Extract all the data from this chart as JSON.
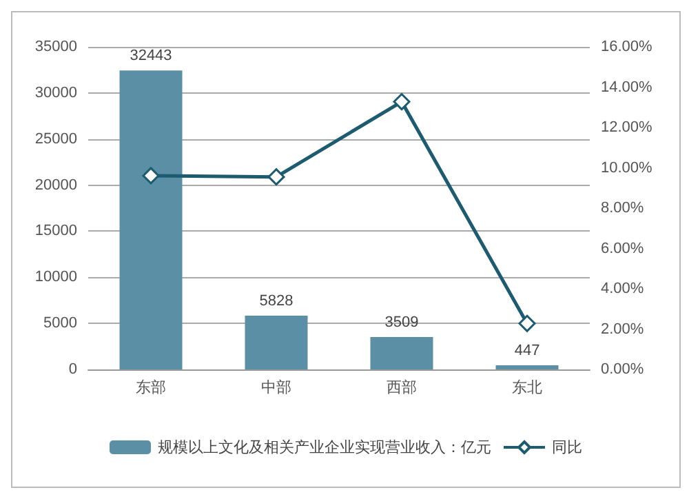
{
  "chart_data": {
    "type": "bar",
    "categories": [
      "东部",
      "中部",
      "西部",
      "东北"
    ],
    "series": [
      {
        "name": "规模以上文化及相关产业企业实现营业收入：亿元",
        "color": "#5b8fa6",
        "values": [
          32443,
          5828,
          3509,
          447
        ],
        "value_labels": [
          "32443",
          "5828",
          "3509",
          "447"
        ]
      },
      {
        "name": "同比",
        "type": "line",
        "axis": "y2",
        "color": "#1d5b70",
        "values": [
          9.61,
          9.55,
          13.28,
          2.28
        ],
        "marker": "diamond"
      }
    ],
    "ylim": [
      0,
      35000
    ],
    "yticks": [
      0,
      5000,
      10000,
      15000,
      20000,
      25000,
      30000,
      35000
    ],
    "y2lim": [
      0,
      16
    ],
    "y2ticks": [
      {
        "value": 0,
        "label": "0.00%"
      },
      {
        "value": 2,
        "label": "2.00%"
      },
      {
        "value": 4,
        "label": "4.00%"
      },
      {
        "value": 6,
        "label": "6.00%"
      },
      {
        "value": 8,
        "label": "8.00%"
      },
      {
        "value": 10,
        "label": "10.00%"
      },
      {
        "value": 12,
        "label": "12.00%"
      },
      {
        "value": 14,
        "label": "14.00%"
      },
      {
        "value": 16,
        "label": "16.00%"
      }
    ],
    "grid": "y",
    "legend": "bottom"
  }
}
